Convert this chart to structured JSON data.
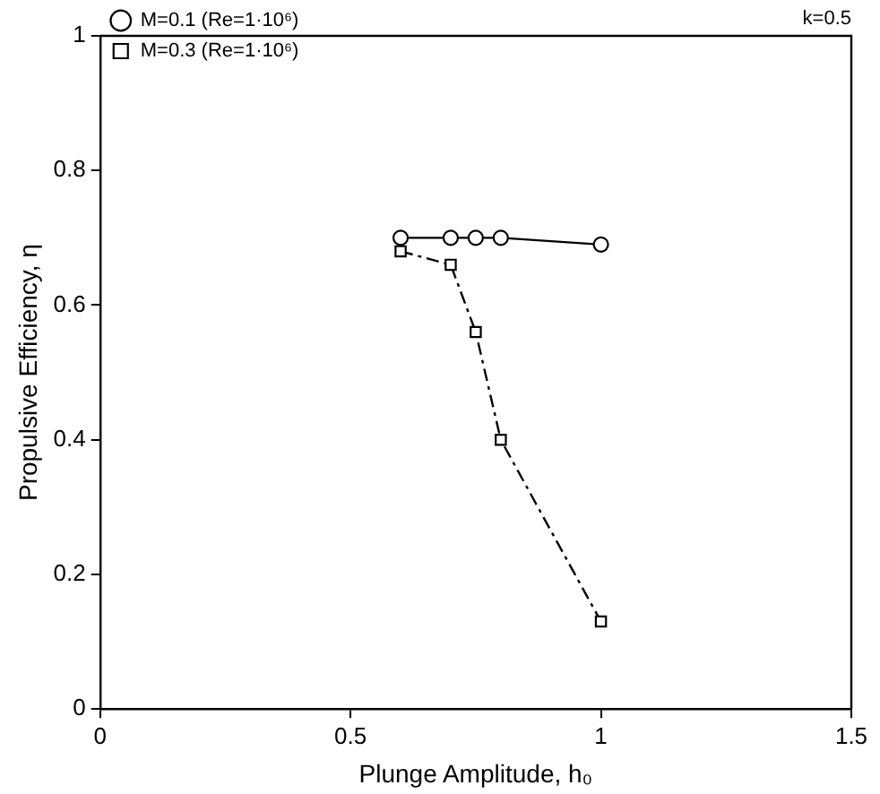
{
  "chart_data": {
    "type": "line",
    "xlabel": "Plunge Amplitude, h₀",
    "ylabel": "Propulsive Efficiency, η",
    "annotations": [
      "k=0.5"
    ],
    "xlim": [
      0,
      1.5
    ],
    "xticks": [
      0,
      0.5,
      1,
      1.5
    ],
    "ylim": [
      0,
      1
    ],
    "yticks": [
      0,
      0.2,
      0.4,
      0.6,
      0.8,
      1
    ],
    "grid": false,
    "legend": "top left",
    "series": [
      {
        "name": "M=0.1 (Re=1·10⁶)",
        "color": "#000000",
        "marker": "circle",
        "line_style": "solid",
        "x": [
          0.6,
          0.7,
          0.75,
          0.8,
          1.0
        ],
        "values": [
          0.7,
          0.7,
          0.7,
          0.7,
          0.69
        ]
      },
      {
        "name": "M=0.3 (Re=1·10⁶)",
        "color": "#000000",
        "marker": "square",
        "line_style": "dashdot",
        "x": [
          0.6,
          0.7,
          0.75,
          0.8,
          1.0
        ],
        "values": [
          0.68,
          0.66,
          0.56,
          0.4,
          0.13
        ]
      }
    ]
  }
}
